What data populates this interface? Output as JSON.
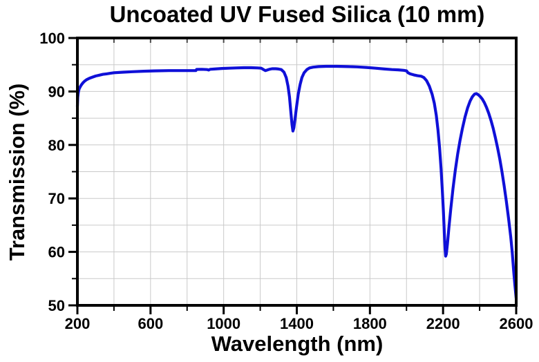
{
  "chart_data": {
    "type": "line",
    "title": "Uncoated UV Fused Silica (10 mm)",
    "xlabel": "Wavelength (nm)",
    "ylabel": "Transmission (%)",
    "xlim": [
      200,
      2600
    ],
    "ylim": [
      50,
      100
    ],
    "x_major_ticks": [
      200,
      600,
      1000,
      1400,
      1800,
      2200,
      2600
    ],
    "x_minor_ticks": [
      400,
      800,
      1200,
      1600,
      2000,
      2400
    ],
    "y_major_ticks": [
      50,
      60,
      70,
      80,
      90,
      100
    ],
    "y_minor_ticks": [
      55,
      65,
      75,
      85,
      95
    ],
    "grid": {
      "show": true,
      "x_step_nm": 200,
      "y_step_pct": 5
    },
    "colors": {
      "curve": "#0f10d8",
      "grid": "#c9c9c9",
      "axis": "#000000",
      "top_tick": "#4a4a4a",
      "background": "#ffffff"
    },
    "series": [
      {
        "name": "transmission",
        "points": [
          [
            200,
            87.2
          ],
          [
            201,
            88.2
          ],
          [
            202,
            88.9
          ],
          [
            204,
            89.6
          ],
          [
            206,
            90.0
          ],
          [
            210,
            90.5
          ],
          [
            215,
            90.85
          ],
          [
            220,
            91.15
          ],
          [
            230,
            91.6
          ],
          [
            240,
            91.95
          ],
          [
            250,
            92.2
          ],
          [
            265,
            92.45
          ],
          [
            280,
            92.65
          ],
          [
            300,
            92.9
          ],
          [
            320,
            93.05
          ],
          [
            340,
            93.2
          ],
          [
            360,
            93.3
          ],
          [
            380,
            93.4
          ],
          [
            400,
            93.5
          ],
          [
            450,
            93.6
          ],
          [
            500,
            93.7
          ],
          [
            560,
            93.78
          ],
          [
            620,
            93.85
          ],
          [
            700,
            93.9
          ],
          [
            780,
            93.9
          ],
          [
            830,
            93.9
          ],
          [
            848,
            93.9
          ],
          [
            852,
            94.12
          ],
          [
            880,
            94.15
          ],
          [
            910,
            94.1
          ],
          [
            918,
            94.0
          ],
          [
            926,
            94.15
          ],
          [
            950,
            94.2
          ],
          [
            990,
            94.3
          ],
          [
            1030,
            94.35
          ],
          [
            1070,
            94.4
          ],
          [
            1110,
            94.45
          ],
          [
            1150,
            94.45
          ],
          [
            1185,
            94.4
          ],
          [
            1205,
            94.35
          ],
          [
            1218,
            94.1
          ],
          [
            1228,
            93.9
          ],
          [
            1238,
            94.0
          ],
          [
            1250,
            94.15
          ],
          [
            1265,
            94.25
          ],
          [
            1285,
            94.25
          ],
          [
            1300,
            94.2
          ],
          [
            1315,
            94.1
          ],
          [
            1330,
            93.6
          ],
          [
            1342,
            92.6
          ],
          [
            1352,
            91.0
          ],
          [
            1360,
            89.0
          ],
          [
            1368,
            86.0
          ],
          [
            1374,
            83.8
          ],
          [
            1379,
            82.6
          ],
          [
            1384,
            83.2
          ],
          [
            1390,
            84.8
          ],
          [
            1398,
            87.0
          ],
          [
            1408,
            89.5
          ],
          [
            1418,
            91.3
          ],
          [
            1428,
            92.6
          ],
          [
            1440,
            93.5
          ],
          [
            1455,
            94.1
          ],
          [
            1470,
            94.4
          ],
          [
            1490,
            94.55
          ],
          [
            1520,
            94.65
          ],
          [
            1560,
            94.7
          ],
          [
            1620,
            94.7
          ],
          [
            1680,
            94.65
          ],
          [
            1730,
            94.6
          ],
          [
            1780,
            94.5
          ],
          [
            1830,
            94.35
          ],
          [
            1880,
            94.2
          ],
          [
            1920,
            94.1
          ],
          [
            1955,
            94.05
          ],
          [
            1985,
            93.95
          ],
          [
            2000,
            93.85
          ],
          [
            2008,
            93.5
          ],
          [
            2020,
            93.3
          ],
          [
            2040,
            93.1
          ],
          [
            2060,
            92.95
          ],
          [
            2080,
            92.85
          ],
          [
            2095,
            92.6
          ],
          [
            2110,
            92.0
          ],
          [
            2125,
            91.0
          ],
          [
            2140,
            89.5
          ],
          [
            2152,
            87.8
          ],
          [
            2163,
            85.5
          ],
          [
            2172,
            82.8
          ],
          [
            2181,
            79.5
          ],
          [
            2189,
            75.5
          ],
          [
            2196,
            71.5
          ],
          [
            2202,
            67.5
          ],
          [
            2207,
            63.5
          ],
          [
            2211,
            60.5
          ],
          [
            2214,
            59.2
          ],
          [
            2218,
            59.6
          ],
          [
            2224,
            61.5
          ],
          [
            2232,
            64.5
          ],
          [
            2242,
            68.0
          ],
          [
            2254,
            71.8
          ],
          [
            2267,
            75.3
          ],
          [
            2280,
            78.3
          ],
          [
            2293,
            80.9
          ],
          [
            2306,
            83.1
          ],
          [
            2320,
            85.2
          ],
          [
            2334,
            86.9
          ],
          [
            2348,
            88.2
          ],
          [
            2360,
            89.0
          ],
          [
            2372,
            89.5
          ],
          [
            2382,
            89.6
          ],
          [
            2392,
            89.4
          ],
          [
            2402,
            89.1
          ],
          [
            2414,
            88.6
          ],
          [
            2426,
            87.9
          ],
          [
            2438,
            87.0
          ],
          [
            2450,
            85.9
          ],
          [
            2462,
            84.6
          ],
          [
            2474,
            83.1
          ],
          [
            2486,
            81.4
          ],
          [
            2498,
            79.5
          ],
          [
            2510,
            77.4
          ],
          [
            2522,
            75.0
          ],
          [
            2534,
            72.4
          ],
          [
            2546,
            69.5
          ],
          [
            2558,
            66.3
          ],
          [
            2570,
            62.8
          ],
          [
            2578,
            60.0
          ],
          [
            2586,
            56.5
          ],
          [
            2593,
            53.8
          ],
          [
            2600,
            51.3
          ]
        ]
      }
    ]
  }
}
